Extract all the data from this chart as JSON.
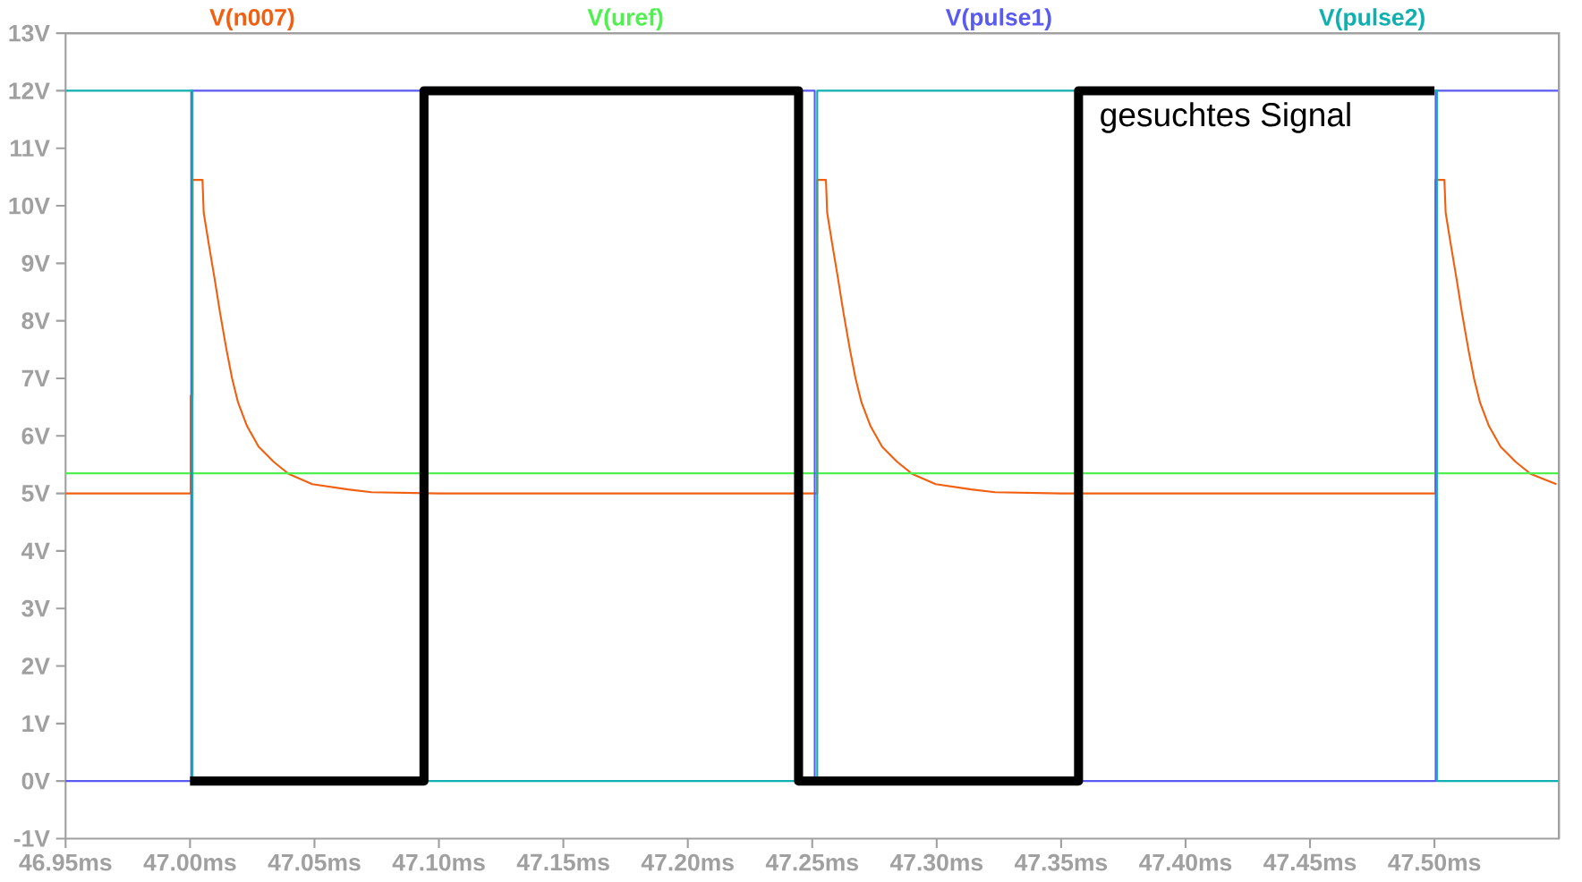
{
  "chart_data": {
    "type": "line",
    "xlim": [
      46.95,
      47.55
    ],
    "ylim": [
      -1,
      13
    ],
    "xticks": [
      {
        "value": 46.95,
        "label": "46.95ms"
      },
      {
        "value": 47.0,
        "label": "47.00ms"
      },
      {
        "value": 47.05,
        "label": "47.05ms"
      },
      {
        "value": 47.1,
        "label": "47.10ms"
      },
      {
        "value": 47.15,
        "label": "47.15ms"
      },
      {
        "value": 47.2,
        "label": "47.20ms"
      },
      {
        "value": 47.25,
        "label": "47.25ms"
      },
      {
        "value": 47.3,
        "label": "47.30ms"
      },
      {
        "value": 47.35,
        "label": "47.35ms"
      },
      {
        "value": 47.4,
        "label": "47.40ms"
      },
      {
        "value": 47.45,
        "label": "47.45ms"
      },
      {
        "value": 47.5,
        "label": "47.50ms"
      }
    ],
    "yticks": [
      {
        "value": -1,
        "label": "-1V"
      },
      {
        "value": 0,
        "label": "0V"
      },
      {
        "value": 1,
        "label": "1V"
      },
      {
        "value": 2,
        "label": "2V"
      },
      {
        "value": 3,
        "label": "3V"
      },
      {
        "value": 4,
        "label": "4V"
      },
      {
        "value": 5,
        "label": "5V"
      },
      {
        "value": 6,
        "label": "6V"
      },
      {
        "value": 7,
        "label": "7V"
      },
      {
        "value": 8,
        "label": "8V"
      },
      {
        "value": 9,
        "label": "9V"
      },
      {
        "value": 10,
        "label": "10V"
      },
      {
        "value": 11,
        "label": "11V"
      },
      {
        "value": 12,
        "label": "12V"
      },
      {
        "value": 13,
        "label": "13V"
      }
    ],
    "legend": "top",
    "marker": "none",
    "line_style": "solid",
    "series": [
      {
        "name": "V(n007)",
        "color": "#f06010",
        "x": [
          46.95,
          47.0003,
          47.0003,
          47.001,
          47.001,
          47.005,
          47.0055,
          47.0074,
          47.0098,
          47.0121,
          47.0146,
          47.0169,
          47.0193,
          47.0229,
          47.0276,
          47.0336,
          47.0396,
          47.0491,
          47.0634,
          47.0729,
          47.1,
          47.252,
          47.252,
          47.2555,
          47.256,
          47.2579,
          47.2603,
          47.2626,
          47.2651,
          47.2674,
          47.2698,
          47.2734,
          47.2781,
          47.2841,
          47.2901,
          47.2996,
          47.3139,
          47.3234,
          47.35,
          47.5004,
          47.5004,
          47.504,
          47.5045,
          47.5064,
          47.5088,
          47.5111,
          47.5136,
          47.5159,
          47.5183,
          47.5219,
          47.5266,
          47.5326,
          47.5386,
          47.549
        ],
        "values": [
          5.0,
          5.0,
          6.7,
          6.7,
          10.45,
          10.45,
          9.88,
          9.37,
          8.75,
          8.13,
          7.51,
          7.0,
          6.58,
          6.17,
          5.81,
          5.55,
          5.34,
          5.16,
          5.07,
          5.02,
          5.0,
          5.0,
          10.45,
          10.45,
          9.88,
          9.37,
          8.75,
          8.13,
          7.51,
          7.0,
          6.58,
          6.17,
          5.81,
          5.55,
          5.34,
          5.16,
          5.07,
          5.02,
          5.0,
          5.0,
          10.45,
          10.45,
          9.88,
          9.37,
          8.75,
          8.13,
          7.51,
          7.0,
          6.58,
          6.17,
          5.81,
          5.55,
          5.34,
          5.16
        ]
      },
      {
        "name": "V(uref)",
        "color": "#50f050",
        "x": [
          46.95,
          47.55
        ],
        "values": [
          5.35,
          5.35
        ]
      },
      {
        "name": "V(pulse1)",
        "color": "#5a5af0",
        "x": [
          46.95,
          47.0005,
          47.0005,
          47.251,
          47.251,
          47.5005,
          47.5005,
          47.55
        ],
        "values": [
          0,
          0,
          12,
          12,
          0,
          0,
          12,
          12
        ]
      },
      {
        "name": "V(pulse2)",
        "color": "#10b0b0",
        "x": [
          46.95,
          47.001,
          47.001,
          47.252,
          47.252,
          47.501,
          47.501,
          47.55
        ],
        "values": [
          12,
          12,
          0,
          0,
          12,
          12,
          0,
          0
        ]
      },
      {
        "color": "#000000",
        "x": [
          47.0,
          47.094,
          47.094,
          47.2445,
          47.2445,
          47.357,
          47.357,
          47.5
        ],
        "values": [
          0,
          0,
          12,
          12,
          0,
          0,
          12,
          12
        ]
      }
    ],
    "annotations": [
      "gesuchtes Signal"
    ]
  }
}
